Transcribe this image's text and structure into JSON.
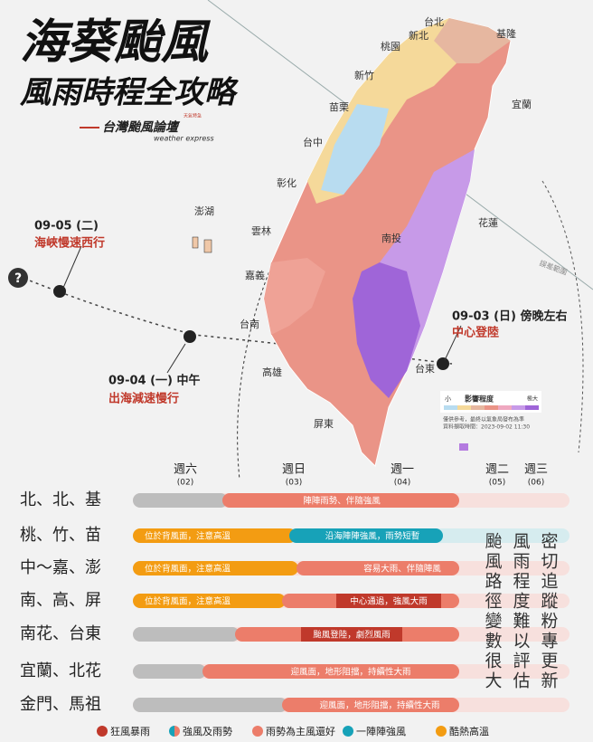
{
  "header": {
    "title": "海葵颱風",
    "subtitle": "風雨時程全攻略",
    "brand": "台灣颱風論壇",
    "brand_en": "weather express",
    "badge": "天氣特急"
  },
  "map": {
    "labels": [
      "台北",
      "基隆",
      "新北",
      "桃園",
      "新竹",
      "宜蘭",
      "苗栗",
      "台中",
      "彰化",
      "澎湖",
      "花蓮",
      "雲林",
      "南投",
      "嘉義",
      "台南",
      "高雄",
      "台東",
      "屏東"
    ],
    "error_label": "誤差範圍",
    "legend": {
      "low": "小",
      "title": "影響程度",
      "high": "極大",
      "note": "僅供參考，最終以氣象局發布為準",
      "timestamp": "資料擷取時間：2023-09-02 11:30"
    }
  },
  "track": {
    "unknown": "?",
    "points": [
      {
        "date": "09-05 (二)",
        "note": "海峽慢速西行"
      },
      {
        "date": "09-04 (一) 中午",
        "note": "出海減速慢行"
      },
      {
        "date": "09-03 (日) 傍晚左右",
        "note": "中心登陸"
      }
    ]
  },
  "timeline": {
    "days": [
      {
        "day": "週六",
        "date": "(02)"
      },
      {
        "day": "週日",
        "date": "(03)"
      },
      {
        "day": "週一",
        "date": "(04)"
      },
      {
        "day": "週二",
        "date": "(05)"
      },
      {
        "day": "週三",
        "date": "(06)"
      }
    ],
    "rows": [
      {
        "region": "北、北、基",
        "segments": [
          "陣陣雨勢、伴隨強風"
        ]
      },
      {
        "region": "桃、竹、苗",
        "segments": [
          "位於背風面，注意高溫",
          "沿海陣陣強風，雨勢短暫"
        ]
      },
      {
        "region": "中～嘉、澎",
        "segments": [
          "位於背風面，注意高溫",
          "容易大雨、伴隨陣風"
        ]
      },
      {
        "region": "南、高、屏",
        "segments": [
          "位於背風面，注意高溫",
          "中心通過，強風大雨"
        ]
      },
      {
        "region": "南花、台東",
        "segments": [
          "颱風登陸，劇烈風雨"
        ]
      },
      {
        "region": "宜蘭、北花",
        "segments": [
          "迎風面，地形阻擋，持續性大雨"
        ]
      },
      {
        "region": "金門、馬祖",
        "segments": [
          "迎風面，地形阻擋，持續性大雨"
        ]
      }
    ],
    "remark": [
      "颱風路徑變數很大",
      "風雨程度難以評估",
      "密切追蹤粉專更新"
    ],
    "legend": [
      "狂風暴雨",
      "強風及雨勢",
      "雨勢為主風還好",
      "一陣陣強風",
      "酷熱高溫"
    ]
  }
}
